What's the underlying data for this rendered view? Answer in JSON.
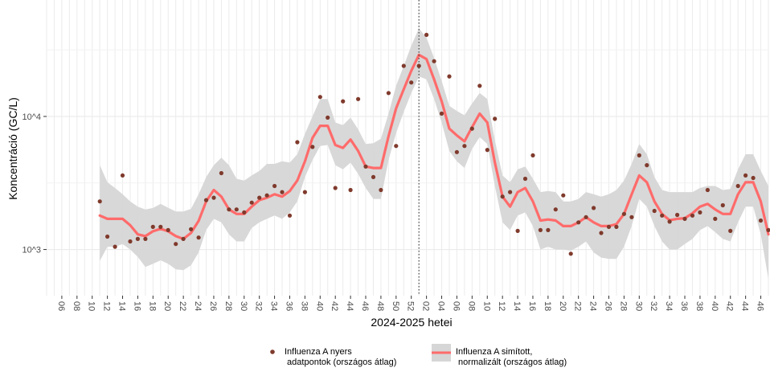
{
  "chart_data": {
    "type": "line",
    "title": "",
    "xlabel": "2024-2025 hetei",
    "ylabel": "Koncentráció (GC/L)",
    "y_scale": "log10",
    "ylim": [
      450,
      75000
    ],
    "y_ticks": [
      {
        "value": 1000,
        "label": "10^3"
      },
      {
        "value": 10000,
        "label": "10^4"
      }
    ],
    "x_range_weeks": [
      4,
      99
    ],
    "x_ticks": [
      {
        "w": 6,
        "label": "06"
      },
      {
        "w": 8,
        "label": "08"
      },
      {
        "w": 10,
        "label": "10"
      },
      {
        "w": 12,
        "label": "12"
      },
      {
        "w": 14,
        "label": "14"
      },
      {
        "w": 16,
        "label": "16"
      },
      {
        "w": 18,
        "label": "18"
      },
      {
        "w": 20,
        "label": "20"
      },
      {
        "w": 22,
        "label": "22"
      },
      {
        "w": 24,
        "label": "24"
      },
      {
        "w": 26,
        "label": "26"
      },
      {
        "w": 28,
        "label": "28"
      },
      {
        "w": 30,
        "label": "30"
      },
      {
        "w": 32,
        "label": "32"
      },
      {
        "w": 34,
        "label": "34"
      },
      {
        "w": 36,
        "label": "36"
      },
      {
        "w": 38,
        "label": "38"
      },
      {
        "w": 40,
        "label": "40"
      },
      {
        "w": 42,
        "label": "42"
      },
      {
        "w": 44,
        "label": "44"
      },
      {
        "w": 46,
        "label": "46"
      },
      {
        "w": 48,
        "label": "48"
      },
      {
        "w": 50,
        "label": "50"
      },
      {
        "w": 52,
        "label": "52"
      },
      {
        "w": 54,
        "label": "02"
      },
      {
        "w": 56,
        "label": "04"
      },
      {
        "w": 58,
        "label": "06"
      },
      {
        "w": 60,
        "label": "08"
      },
      {
        "w": 62,
        "label": "10"
      },
      {
        "w": 64,
        "label": "12"
      },
      {
        "w": 66,
        "label": "14"
      },
      {
        "w": 68,
        "label": "16"
      },
      {
        "w": 70,
        "label": "18"
      },
      {
        "w": 72,
        "label": "20"
      },
      {
        "w": 74,
        "label": "22"
      },
      {
        "w": 76,
        "label": "24"
      },
      {
        "w": 78,
        "label": "26"
      },
      {
        "w": 80,
        "label": "28"
      },
      {
        "w": 82,
        "label": "30"
      },
      {
        "w": 84,
        "label": "32"
      },
      {
        "w": 86,
        "label": "34"
      },
      {
        "w": 88,
        "label": "36"
      },
      {
        "w": 90,
        "label": "38"
      },
      {
        "w": 92,
        "label": "40"
      },
      {
        "w": 94,
        "label": "42"
      },
      {
        "w": 96,
        "label": "44"
      },
      {
        "w": 98,
        "label": "46"
      }
    ],
    "vline_week": 53,
    "grid": true,
    "legend_position": "bottom",
    "colors": {
      "points": "#7f3a2c",
      "line": "#ff6b6b",
      "ribbon": "#d6d6d6",
      "grid": "#ebebeb",
      "axis_text": "#4d4d4d"
    },
    "series": [
      {
        "name": "Influenza A nyers\n  adatpontok (országos átlag)",
        "kind": "points",
        "points": [
          [
            11,
            2300
          ],
          [
            12,
            1250
          ],
          [
            13,
            1050
          ],
          [
            14,
            3600
          ],
          [
            15,
            1150
          ],
          [
            16,
            1200
          ],
          [
            17,
            1200
          ],
          [
            18,
            1480
          ],
          [
            19,
            1480
          ],
          [
            20,
            1400
          ],
          [
            21,
            1100
          ],
          [
            22,
            1200
          ],
          [
            23,
            1420
          ],
          [
            24,
            1230
          ],
          [
            25,
            2350
          ],
          [
            26,
            2450
          ],
          [
            27,
            3750
          ],
          [
            28,
            2000
          ],
          [
            29,
            2000
          ],
          [
            30,
            1900
          ],
          [
            31,
            2250
          ],
          [
            32,
            2450
          ],
          [
            33,
            2550
          ],
          [
            34,
            3000
          ],
          [
            35,
            2700
          ],
          [
            36,
            1800
          ],
          [
            37,
            6400
          ],
          [
            38,
            2700
          ],
          [
            39,
            5900
          ],
          [
            40,
            14000
          ],
          [
            41,
            9800
          ],
          [
            42,
            2900
          ],
          [
            43,
            13000
          ],
          [
            44,
            2800
          ],
          [
            45,
            13500
          ],
          [
            46,
            4200
          ],
          [
            47,
            3500
          ],
          [
            48,
            2800
          ],
          [
            49,
            15000
          ],
          [
            50,
            6000
          ],
          [
            51,
            24000
          ],
          [
            52,
            18000
          ],
          [
            53,
            24000
          ],
          [
            54,
            41000
          ],
          [
            55,
            26000
          ],
          [
            56,
            10500
          ],
          [
            57,
            20000
          ],
          [
            58,
            5400
          ],
          [
            59,
            6000
          ],
          [
            60,
            8100
          ],
          [
            61,
            17000
          ],
          [
            62,
            5600
          ],
          [
            63,
            9600
          ],
          [
            64,
            2500
          ],
          [
            65,
            2700
          ],
          [
            66,
            1380
          ],
          [
            67,
            3400
          ],
          [
            68,
            5100
          ],
          [
            69,
            1400
          ],
          [
            70,
            1400
          ],
          [
            71,
            2000
          ],
          [
            72,
            2550
          ],
          [
            73,
            930
          ],
          [
            74,
            1600
          ],
          [
            75,
            1750
          ],
          [
            76,
            2050
          ],
          [
            77,
            1330
          ],
          [
            78,
            1480
          ],
          [
            79,
            1480
          ],
          [
            80,
            1850
          ],
          [
            81,
            1750
          ],
          [
            82,
            5100
          ],
          [
            83,
            4300
          ],
          [
            84,
            1950
          ],
          [
            85,
            1800
          ],
          [
            86,
            1620
          ],
          [
            87,
            1820
          ],
          [
            88,
            1700
          ],
          [
            89,
            1800
          ],
          [
            90,
            1900
          ],
          [
            91,
            2800
          ],
          [
            92,
            1700
          ],
          [
            93,
            2150
          ],
          [
            94,
            1380
          ],
          [
            95,
            3000
          ],
          [
            96,
            3600
          ],
          [
            97,
            3450
          ],
          [
            98,
            1650
          ],
          [
            99,
            1400
          ]
        ]
      },
      {
        "name": "Influenza A simított,\n  normalizált (országos átlag)",
        "kind": "line_ribbon",
        "points": [
          [
            11,
            1800,
            820,
            4300
          ],
          [
            12,
            1700,
            1050,
            3200
          ],
          [
            13,
            1700,
            1050,
            2900
          ],
          [
            14,
            1700,
            1100,
            2600
          ],
          [
            15,
            1520,
            1000,
            2300
          ],
          [
            16,
            1300,
            880,
            2100
          ],
          [
            17,
            1260,
            740,
            2000
          ],
          [
            18,
            1370,
            780,
            2050
          ],
          [
            19,
            1430,
            830,
            2200
          ],
          [
            20,
            1370,
            780,
            2060
          ],
          [
            21,
            1260,
            710,
            1930
          ],
          [
            22,
            1200,
            700,
            1930
          ],
          [
            23,
            1330,
            760,
            2020
          ],
          [
            24,
            1640,
            950,
            2600
          ],
          [
            25,
            2300,
            1400,
            3500
          ],
          [
            26,
            2800,
            1700,
            4300
          ],
          [
            27,
            2500,
            1600,
            4900
          ],
          [
            28,
            2000,
            1300,
            4300
          ],
          [
            29,
            1850,
            1150,
            3400
          ],
          [
            30,
            1850,
            1150,
            3300
          ],
          [
            31,
            2100,
            1450,
            3600
          ],
          [
            32,
            2350,
            1600,
            3900
          ],
          [
            33,
            2450,
            1700,
            4400
          ],
          [
            34,
            2600,
            1800,
            4400
          ],
          [
            35,
            2500,
            1700,
            4600
          ],
          [
            36,
            2750,
            1900,
            4500
          ],
          [
            37,
            3300,
            2300,
            5200
          ],
          [
            38,
            4600,
            3500,
            7400
          ],
          [
            39,
            6900,
            4700,
            10000
          ],
          [
            40,
            8500,
            6000,
            13500
          ],
          [
            41,
            8500,
            6100,
            13500
          ],
          [
            42,
            6100,
            4300,
            9000
          ],
          [
            43,
            5800,
            4000,
            8600
          ],
          [
            44,
            6700,
            4500,
            9800
          ],
          [
            45,
            5500,
            3700,
            8000
          ],
          [
            46,
            4200,
            2900,
            6200
          ],
          [
            47,
            4100,
            2400,
            6300
          ],
          [
            48,
            4100,
            2400,
            6800
          ],
          [
            49,
            7100,
            4700,
            10500
          ],
          [
            50,
            11500,
            7500,
            17000
          ],
          [
            51,
            16000,
            10800,
            24000
          ],
          [
            52,
            22000,
            15000,
            34000
          ],
          [
            53,
            29000,
            20000,
            46000
          ],
          [
            54,
            27000,
            19000,
            39000
          ],
          [
            55,
            19000,
            13500,
            27500
          ],
          [
            56,
            13000,
            9000,
            18500
          ],
          [
            57,
            8100,
            5500,
            12000
          ],
          [
            58,
            7200,
            4600,
            11000
          ],
          [
            59,
            6500,
            4100,
            10200
          ],
          [
            60,
            8300,
            5700,
            12500
          ],
          [
            61,
            10500,
            7000,
            15000
          ],
          [
            62,
            9000,
            6200,
            13500
          ],
          [
            63,
            4500,
            3000,
            6600
          ],
          [
            64,
            2500,
            1600,
            3600
          ],
          [
            65,
            2100,
            1400,
            3200
          ],
          [
            66,
            2700,
            1800,
            4000
          ],
          [
            67,
            2900,
            1900,
            4200
          ],
          [
            68,
            2300,
            1500,
            3400
          ],
          [
            69,
            1650,
            1000,
            2700
          ],
          [
            70,
            1680,
            1050,
            2750
          ],
          [
            71,
            1650,
            1000,
            2700
          ],
          [
            72,
            1500,
            1000,
            2300
          ],
          [
            73,
            1500,
            980,
            2300
          ],
          [
            74,
            1600,
            1050,
            2400
          ],
          [
            75,
            1750,
            1150,
            2700
          ],
          [
            76,
            1600,
            950,
            2600
          ],
          [
            77,
            1500,
            870,
            2500
          ],
          [
            78,
            1500,
            850,
            2600
          ],
          [
            79,
            1550,
            850,
            2800
          ],
          [
            80,
            1850,
            1050,
            3300
          ],
          [
            81,
            2600,
            1500,
            4400
          ],
          [
            82,
            3600,
            2400,
            6200
          ],
          [
            83,
            3200,
            2100,
            5200
          ],
          [
            84,
            2300,
            1500,
            3500
          ],
          [
            85,
            1850,
            1150,
            2800
          ],
          [
            86,
            1660,
            1000,
            2700
          ],
          [
            87,
            1700,
            1000,
            2700
          ],
          [
            88,
            1720,
            1100,
            2700
          ],
          [
            89,
            1870,
            1200,
            2700
          ],
          [
            90,
            2100,
            1400,
            2900
          ],
          [
            91,
            2200,
            1500,
            3000
          ],
          [
            92,
            2000,
            1350,
            3000
          ],
          [
            93,
            1850,
            1200,
            2800
          ],
          [
            94,
            1850,
            1150,
            2850
          ],
          [
            95,
            2600,
            1600,
            4000
          ],
          [
            96,
            3200,
            2100,
            5200
          ],
          [
            97,
            3200,
            2100,
            5200
          ],
          [
            98,
            2300,
            1300,
            3900
          ],
          [
            99,
            1300,
            600,
            3000
          ]
        ]
      }
    ]
  }
}
